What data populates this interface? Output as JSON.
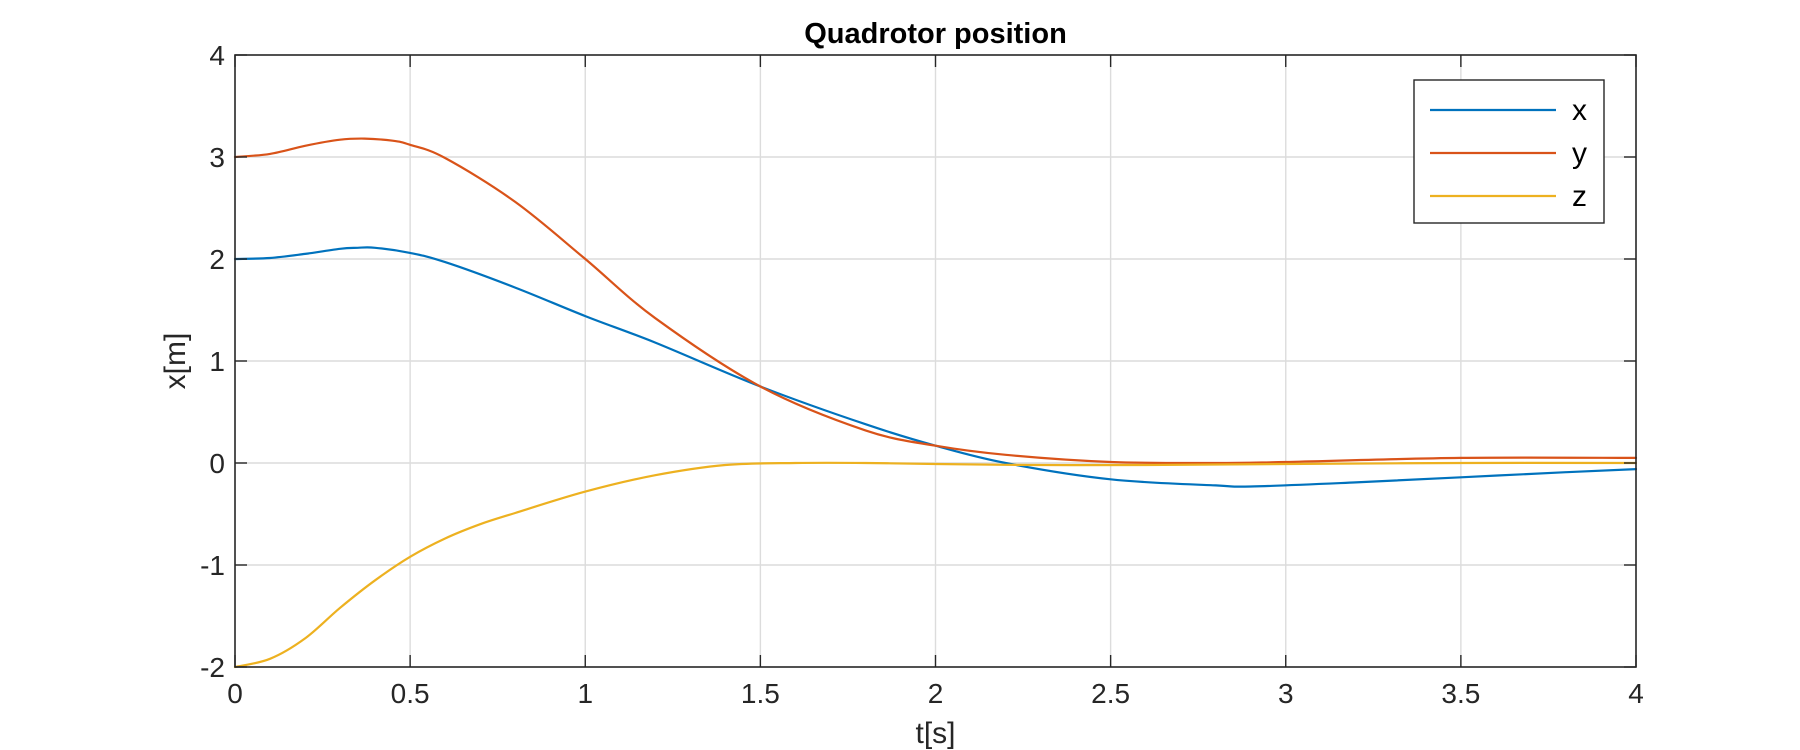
{
  "chart_data": {
    "type": "line",
    "title": "Quadrotor position",
    "xlabel": "t[s]",
    "ylabel": "x[m]",
    "xlim": [
      0,
      4
    ],
    "ylim": [
      -2,
      4
    ],
    "xticks": [
      0,
      0.5,
      1,
      1.5,
      2,
      2.5,
      3,
      3.5,
      4
    ],
    "xtick_labels": [
      "0",
      "0.5",
      "1",
      "1.5",
      "2",
      "2.5",
      "3",
      "3.5",
      "4"
    ],
    "yticks": [
      -2,
      -1,
      0,
      1,
      2,
      3,
      4
    ],
    "ytick_labels": [
      "-2",
      "-1",
      "0",
      "1",
      "2",
      "3",
      "4"
    ],
    "grid": true,
    "legend_position": "top-right",
    "series": [
      {
        "name": "x",
        "color": "#0072BD",
        "x": [
          0,
          0.1,
          0.2,
          0.3,
          0.35,
          0.4,
          0.5,
          0.6,
          0.8,
          1.0,
          1.2,
          1.5,
          1.8,
          2.0,
          2.2,
          2.5,
          2.8,
          2.9,
          3.2,
          3.5,
          3.8,
          4.0
        ],
        "y": [
          2.0,
          2.01,
          2.05,
          2.1,
          2.11,
          2.11,
          2.06,
          1.97,
          1.72,
          1.44,
          1.18,
          0.75,
          0.38,
          0.17,
          0.0,
          -0.16,
          -0.22,
          -0.23,
          -0.19,
          -0.14,
          -0.09,
          -0.06
        ]
      },
      {
        "name": "y",
        "color": "#D95319",
        "x": [
          0,
          0.1,
          0.2,
          0.3,
          0.37,
          0.45,
          0.5,
          0.6,
          0.8,
          1.0,
          1.2,
          1.5,
          1.8,
          2.0,
          2.2,
          2.5,
          2.8,
          3.0,
          3.5,
          4.0
        ],
        "y": [
          3.0,
          3.03,
          3.11,
          3.17,
          3.18,
          3.16,
          3.12,
          2.99,
          2.56,
          2.0,
          1.42,
          0.75,
          0.32,
          0.17,
          0.08,
          0.01,
          0.0,
          0.01,
          0.05,
          0.05
        ]
      },
      {
        "name": "z",
        "color": "#EDB120",
        "x": [
          0,
          0.1,
          0.2,
          0.3,
          0.4,
          0.5,
          0.6,
          0.7,
          0.8,
          1.0,
          1.2,
          1.4,
          1.6,
          1.8,
          2.0,
          2.3,
          2.6,
          3.0,
          3.5,
          4.0
        ],
        "y": [
          -2.0,
          -1.92,
          -1.72,
          -1.42,
          -1.15,
          -0.92,
          -0.74,
          -0.6,
          -0.49,
          -0.28,
          -0.12,
          -0.02,
          0.0,
          0.0,
          -0.01,
          -0.02,
          -0.02,
          -0.01,
          0.0,
          0.0
        ]
      }
    ]
  }
}
